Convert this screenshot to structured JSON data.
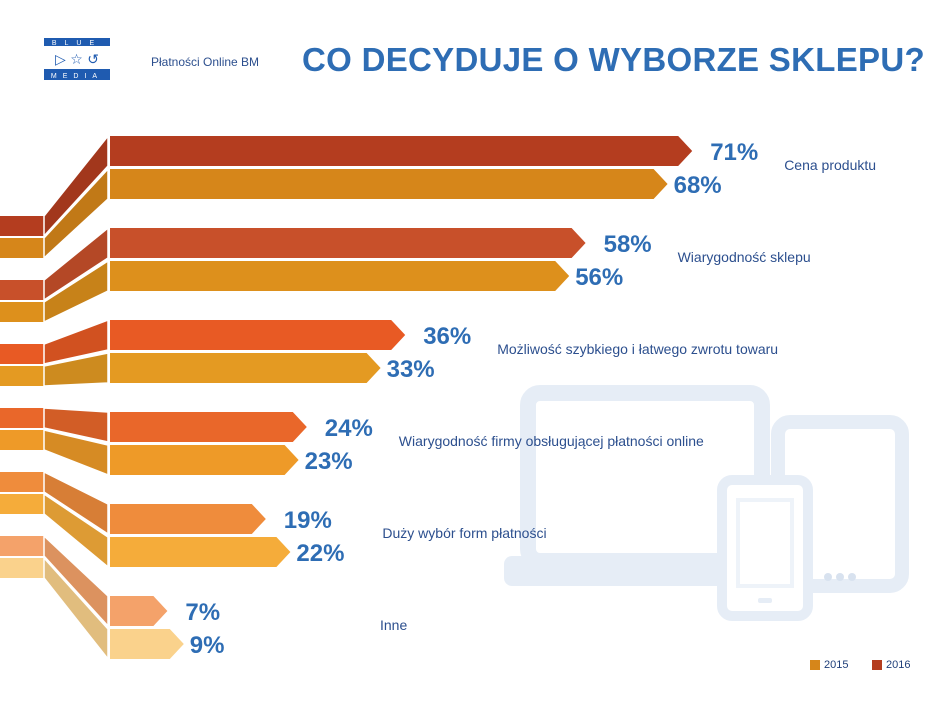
{
  "logo": {
    "lines": [
      "BLUE",
      "MEDIA"
    ]
  },
  "header": {
    "subtitle": "Płatności Online BM",
    "title": "CO DECYDUJE O WYBORZE SKLEPU?"
  },
  "colors": {
    "title": "#2e6db4",
    "value_labels": "#2e6db4",
    "category_labels": "#2c4f8e",
    "series_2016": [
      "#b43d1f",
      "#c8502a",
      "#e85a24",
      "#e9672a",
      "#ef8c3c",
      "#f4a26a"
    ],
    "series_2015": [
      "#d6861a",
      "#dd901c",
      "#e49a22",
      "#ee9a28",
      "#f5ac3a",
      "#fad28c"
    ],
    "devices": "#e8eef6"
  },
  "chart_data": {
    "type": "bar",
    "orientation": "horizontal",
    "title": "CO DECYDUJE O WYBORZE SKLEPU?",
    "unit": "%",
    "categories": [
      "Cena produktu",
      "Wiarygodność sklepu",
      "Możliwość szybkiego i łatwego zwrotu towaru",
      "Wiarygodność firmy obsługującej płatności online",
      "Duży wybór form płatności",
      "Inne"
    ],
    "series": [
      {
        "name": "2016",
        "values": [
          71,
          58,
          36,
          24,
          19,
          7
        ]
      },
      {
        "name": "2015",
        "values": [
          68,
          56,
          33,
          23,
          22,
          9
        ]
      }
    ],
    "value_labels_2016": [
      "71%",
      "58%",
      "36%",
      "24%",
      "19%",
      "7%"
    ],
    "value_labels_2015": [
      "68%",
      "56%",
      "33%",
      "23%",
      "22%",
      "9%"
    ],
    "legend": {
      "position": "bottom-right",
      "entries": [
        "2015",
        "2016"
      ]
    },
    "grid": false
  }
}
